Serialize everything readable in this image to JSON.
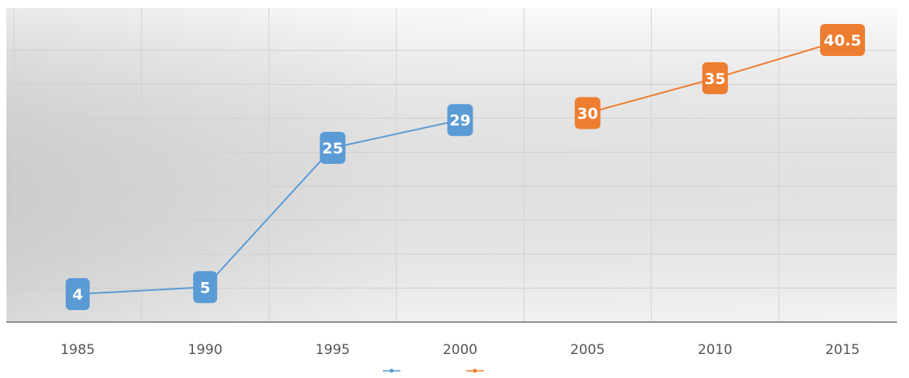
{
  "chart_data": {
    "type": "line",
    "categories": [
      "1985",
      "1990",
      "1995",
      "2000",
      "2005",
      "2010",
      "2015"
    ],
    "series": [
      {
        "name": "",
        "color": "#5b9bd5",
        "x": [
          "1985",
          "1990",
          "1995",
          "2000"
        ],
        "values": [
          4,
          5,
          25,
          29
        ]
      },
      {
        "name": "",
        "color": "#ed7d31",
        "x": [
          "2005",
          "2010",
          "2015"
        ],
        "values": [
          30,
          35,
          40.5
        ]
      }
    ],
    "data_labels": [
      "4",
      "5",
      "25",
      "29",
      "30",
      "35",
      "40.5"
    ],
    "ylim": [
      0,
      45
    ],
    "grid": true,
    "legend_position": "bottom",
    "title": "",
    "xlabel": "",
    "ylabel": ""
  }
}
